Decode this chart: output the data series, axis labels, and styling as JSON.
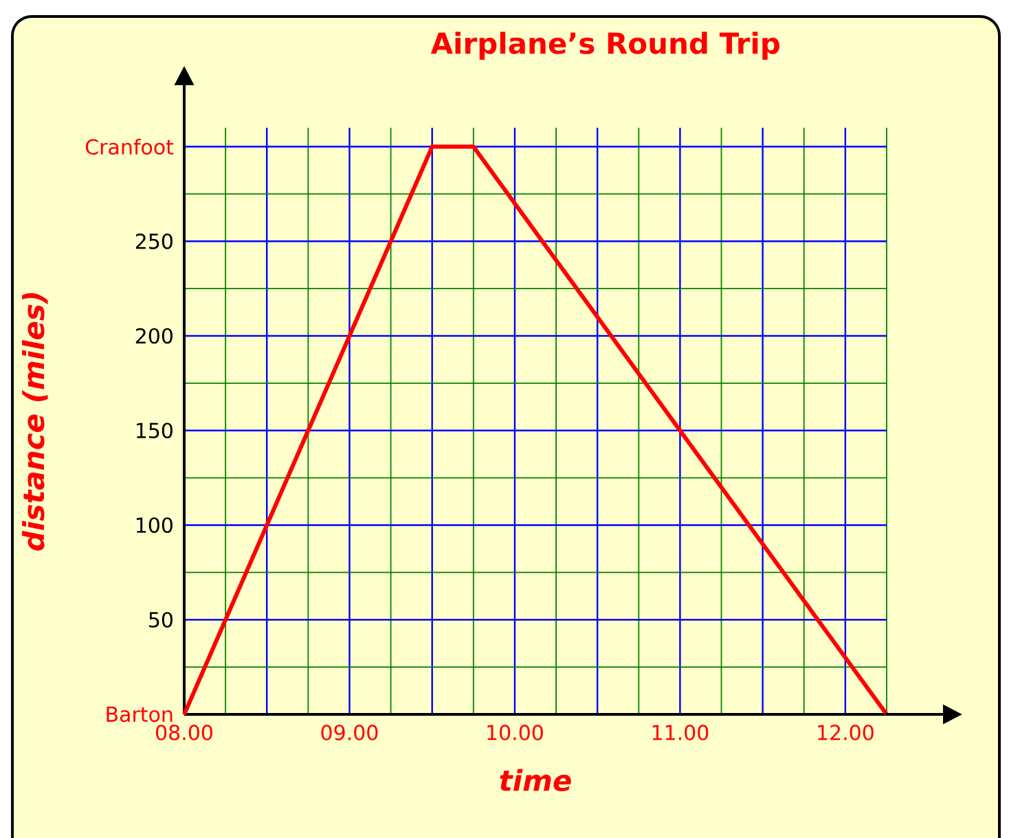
{
  "chart_data": {
    "type": "line",
    "title": "Airplane’s Round Trip",
    "xlabel": "time",
    "ylabel": "distance (miles)",
    "x": [
      8,
      9.5,
      9.75,
      12.25
    ],
    "values": [
      0,
      300,
      300,
      0
    ],
    "color": "#ff0000",
    "line_style": "solid",
    "xlim": [
      8,
      12.25
    ],
    "ylim": [
      0,
      310
    ],
    "xticks": [
      {
        "value": 8,
        "label": "08.00"
      },
      {
        "value": 8.25,
        "label": null
      },
      {
        "value": 8.5,
        "label": null
      },
      {
        "value": 8.75,
        "label": null
      },
      {
        "value": 9,
        "label": "09.00"
      },
      {
        "value": 9.25,
        "label": null
      },
      {
        "value": 9.5,
        "label": null
      },
      {
        "value": 9.75,
        "label": null
      },
      {
        "value": 10,
        "label": "10.00"
      },
      {
        "value": 10.25,
        "label": null
      },
      {
        "value": 10.5,
        "label": null
      },
      {
        "value": 10.75,
        "label": null
      },
      {
        "value": 11,
        "label": "11.00"
      },
      {
        "value": 11.25,
        "label": null
      },
      {
        "value": 11.5,
        "label": null
      },
      {
        "value": 11.75,
        "label": null
      },
      {
        "value": 12,
        "label": "12.00"
      },
      {
        "value": 12.25,
        "label": null
      }
    ],
    "yticks": [
      {
        "value": 0,
        "label": "Barton"
      },
      {
        "value": 25,
        "label": null
      },
      50,
      {
        "value": 75,
        "label": null
      },
      100,
      {
        "value": 125,
        "label": null
      },
      150,
      {
        "value": 175,
        "label": null
      },
      200,
      {
        "value": 225,
        "label": null
      },
      250,
      {
        "value": 275,
        "label": null
      },
      {
        "value": 300,
        "label": "Cranfoot"
      }
    ],
    "grid": true
  }
}
